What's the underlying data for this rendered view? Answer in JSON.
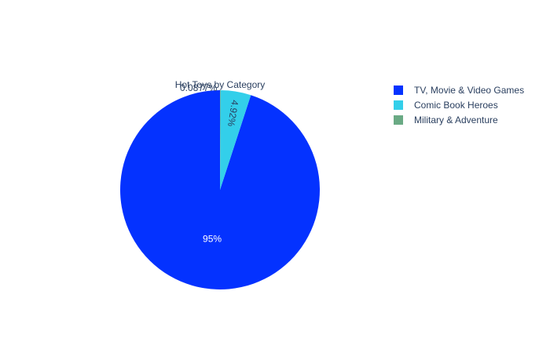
{
  "chart_data": {
    "type": "pie",
    "title": "Hot Toys by Category",
    "slices": [
      {
        "label": "TV, Movie & Video Games",
        "value": 95,
        "value_label": "95%",
        "color": "#0432ff",
        "label_color": "#ffffff"
      },
      {
        "label": "Comic Book Heroes",
        "value": 4.92,
        "value_label": "4.92%",
        "color": "#33cfea",
        "label_color": "#2a3f5f"
      },
      {
        "label": "Military & Adventure",
        "value": 0.0877,
        "value_label": "0.0877%",
        "color": "#6aaa84",
        "label_color": "#2a3f5f"
      }
    ],
    "legend_position": "top-right",
    "direction": "clockwise",
    "start_angle": "top"
  }
}
